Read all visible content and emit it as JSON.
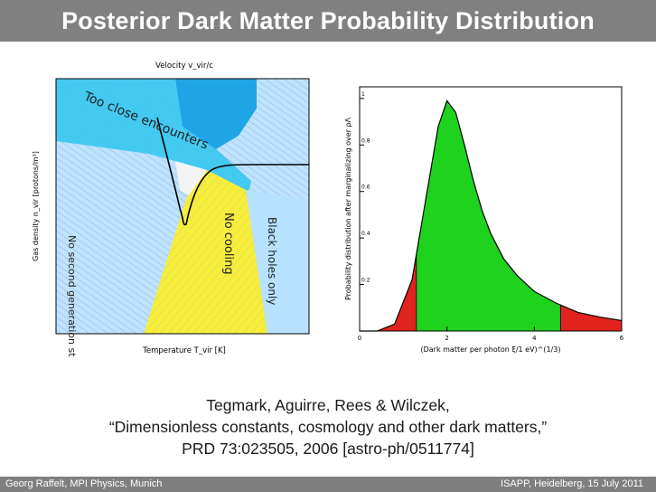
{
  "slide": {
    "title": "Posterior Dark Matter Probability Distribution",
    "citation": {
      "authors": "Tegmark, Aguirre, Rees & Wilczek,",
      "paper_title": "“Dimensionless constants, cosmology and other dark matters,”",
      "reference": "PRD 73:023505, 2006 [astro-ph/0511774]"
    },
    "footer": {
      "left": "Georg Raffelt, MPI Physics, Munich",
      "right": "ISAPP, Heidelberg, 15 July 2011"
    }
  },
  "left_figure": {
    "top_axis_label": "Velocity  v_vir/c",
    "x_axis_label": "Temperature  T_vir [K]",
    "y_axis_label": "Gas density  n_vir [protons/m³]",
    "regions": [
      "Too close encounters",
      "No cooling",
      "Black holes only",
      "No second generation stars"
    ],
    "colors": {
      "background": "#bfe3ff",
      "too_close": "#36c6f0",
      "no_cooling": "#f7ee3c",
      "black_holes": "#b6e2ff"
    }
  },
  "chart_data": {
    "type": "area",
    "title": "",
    "xlabel": "(Dark matter per photon  ξ/1 eV)^(1/3)",
    "ylabel": "Probability distribution after marginalizing over ρΛ",
    "xlim": [
      0,
      6
    ],
    "ylim": [
      0,
      1.05
    ],
    "x_ticks": [
      0,
      2,
      4,
      6
    ],
    "y_ticks": [
      0.2,
      0.4,
      0.6,
      0.8,
      1
    ],
    "x": [
      0,
      0.4,
      0.8,
      1.2,
      1.5,
      1.8,
      2.0,
      2.2,
      2.4,
      2.6,
      2.8,
      3.0,
      3.3,
      3.6,
      4.0,
      4.5,
      5.0,
      5.5,
      6.0
    ],
    "values": [
      0,
      0.0,
      0.03,
      0.22,
      0.55,
      0.88,
      0.99,
      0.94,
      0.8,
      0.65,
      0.52,
      0.42,
      0.31,
      0.24,
      0.17,
      0.12,
      0.08,
      0.06,
      0.045
    ],
    "shaded_band_center": [
      1.3,
      4.6
    ],
    "colors": {
      "tails": "#e0241d",
      "center": "#1ed21e"
    }
  }
}
